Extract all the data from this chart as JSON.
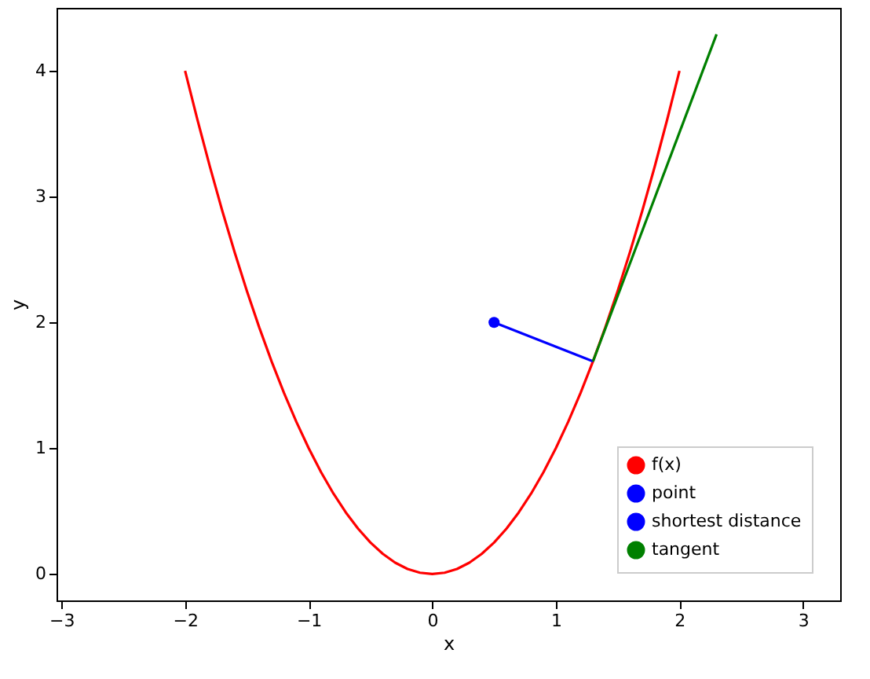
{
  "chart_data": {
    "type": "line",
    "xlabel": "x",
    "ylabel": "y",
    "xlim": [
      -3.04,
      3.3
    ],
    "ylim": [
      -0.21,
      4.5
    ],
    "xticks": [
      -3,
      -2,
      -1,
      0,
      1,
      2,
      3
    ],
    "yticks": [
      0,
      1,
      2,
      3,
      4
    ],
    "grid": false,
    "legend": "bottom right",
    "line_style": "solid",
    "series": [
      {
        "name": "f(x)",
        "color": "#ff0000",
        "x": [
          -2,
          -1.9,
          -1.8,
          -1.7,
          -1.6,
          -1.5,
          -1.4,
          -1.3,
          -1.2,
          -1.1,
          -1,
          -0.9,
          -0.8,
          -0.7,
          -0.6,
          -0.5,
          -0.4,
          -0.3,
          -0.2,
          -0.1,
          0,
          0.1,
          0.2,
          0.3,
          0.4,
          0.5,
          0.6,
          0.7,
          0.8,
          0.9,
          1,
          1.1,
          1.2,
          1.3,
          1.4,
          1.5,
          1.6,
          1.7,
          1.8,
          1.9,
          2
        ],
        "values": [
          4,
          3.61,
          3.24,
          2.89,
          2.56,
          2.25,
          1.96,
          1.69,
          1.44,
          1.21,
          1,
          0.81,
          0.64,
          0.49,
          0.36,
          0.25,
          0.16,
          0.09,
          0.04,
          0.01,
          0,
          0.01,
          0.04,
          0.09,
          0.16,
          0.25,
          0.36,
          0.49,
          0.64,
          0.81,
          1,
          1.21,
          1.44,
          1.69,
          1.96,
          2.25,
          2.56,
          2.89,
          3.24,
          3.61,
          4
        ]
      },
      {
        "name": "point",
        "type": "scatter",
        "marker": "circle",
        "color": "#0000ff",
        "x": [
          0.5
        ],
        "values": [
          2
        ]
      },
      {
        "name": "shortest distance",
        "color": "#0000ff",
        "x": [
          0.5,
          1.3
        ],
        "values": [
          2,
          1.69
        ]
      },
      {
        "name": "tangent",
        "color": "#008000",
        "x": [
          1.3,
          2.3
        ],
        "values": [
          1.69,
          4.29
        ]
      }
    ]
  }
}
